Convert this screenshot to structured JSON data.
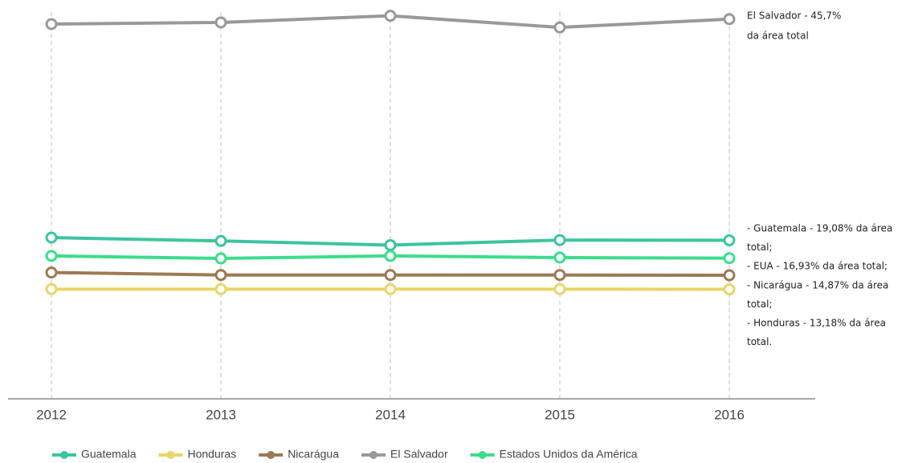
{
  "chart_data": {
    "type": "line",
    "x": [
      "2012",
      "2013",
      "2014",
      "2015",
      "2016"
    ],
    "series": [
      {
        "name": "Guatemala",
        "color": "#3cc4a0",
        "values": [
          19.4,
          19.0,
          18.5,
          19.1,
          19.08
        ]
      },
      {
        "name": "Honduras",
        "color": "#e8d56a",
        "values": [
          13.2,
          13.2,
          13.2,
          13.2,
          13.18
        ]
      },
      {
        "name": "Nicarágua",
        "color": "#9c7a52",
        "values": [
          15.2,
          14.9,
          14.9,
          14.9,
          14.87
        ]
      },
      {
        "name": "El Salvador",
        "color": "#999999",
        "values": [
          45.1,
          45.3,
          46.1,
          44.7,
          45.7
        ]
      },
      {
        "name": "Estados Unidos da América",
        "color": "#3ddc8c",
        "values": [
          17.2,
          16.9,
          17.2,
          17.0,
          16.93
        ]
      }
    ],
    "ylim": [
      0,
      48
    ],
    "grid": true,
    "annotations": [
      [
        "El Salvador - 45,7%",
        "da área total"
      ],
      [
        "- Guatemala - 19,08% da área",
        "total;",
        "- EUA - 16,93% da área total;",
        "- Nicarágua - 14,87% da área",
        "total;",
        "- Honduras - 13,18% da área",
        "total."
      ]
    ]
  }
}
